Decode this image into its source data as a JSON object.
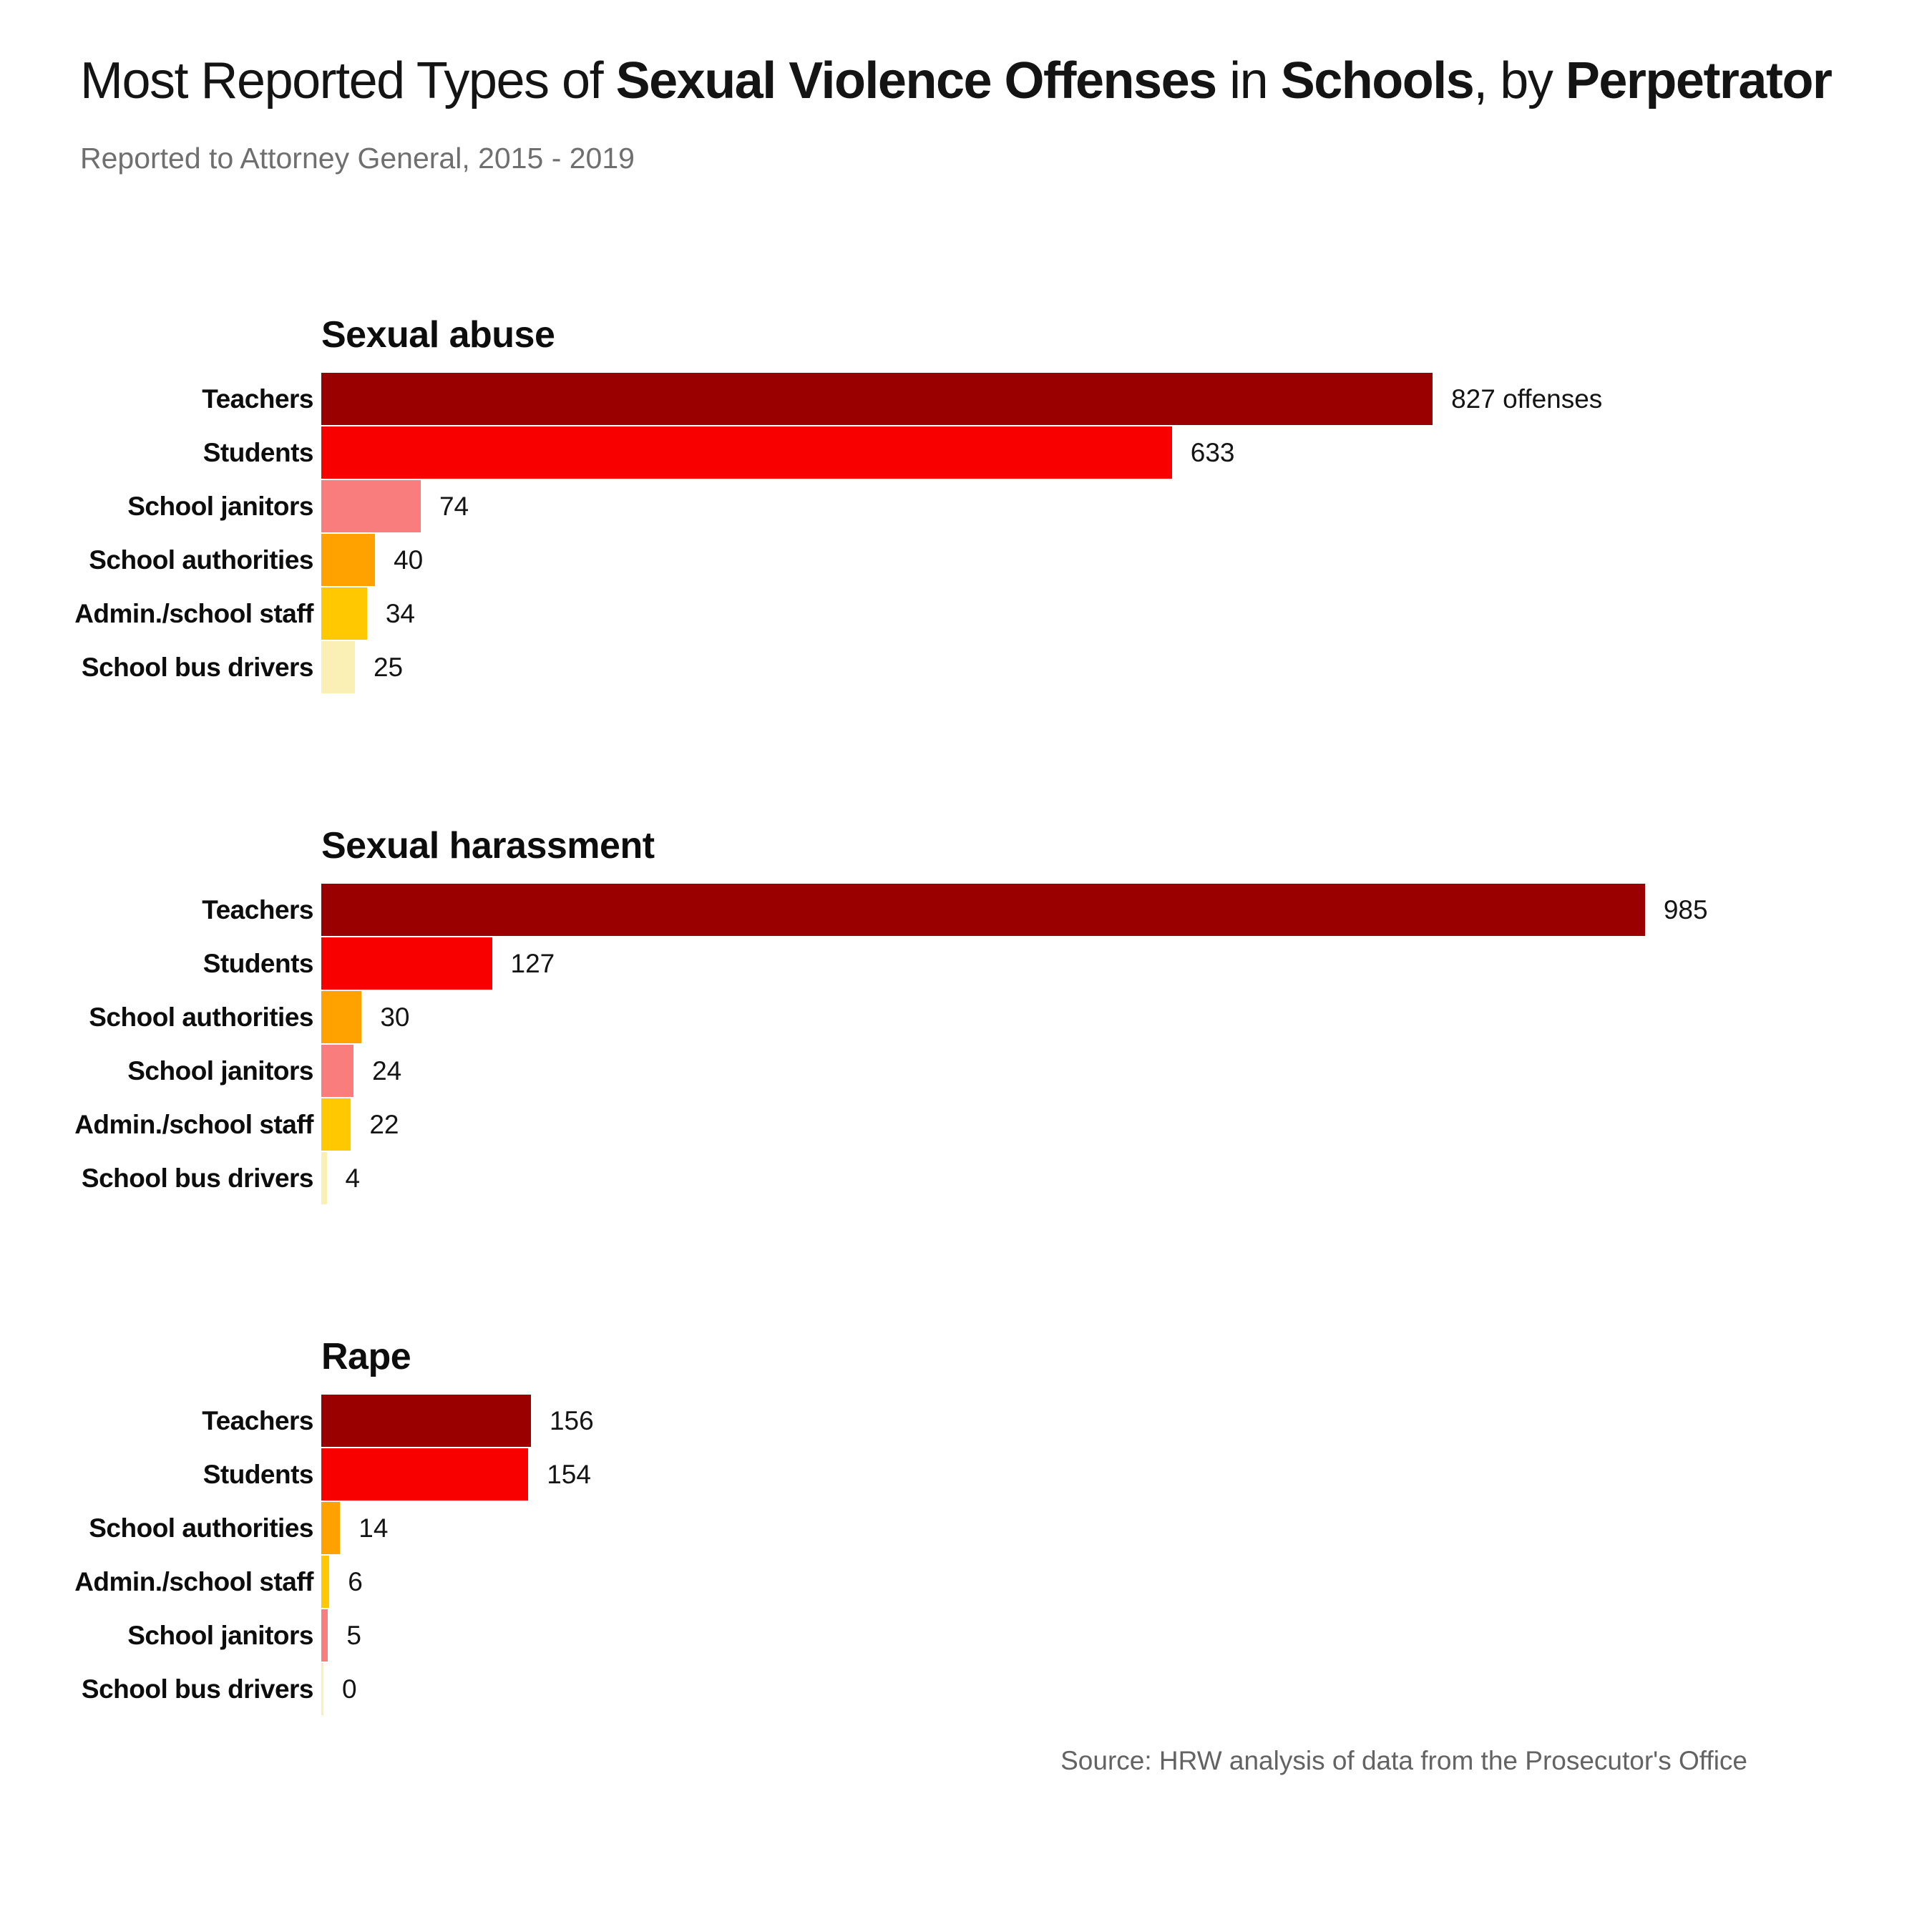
{
  "header": {
    "title_segments": [
      {
        "text": "Most Reported Types of ",
        "bold": false
      },
      {
        "text": "Sexual Violence Offenses",
        "bold": true
      },
      {
        "text": " in ",
        "bold": false
      },
      {
        "text": "Schools",
        "bold": true
      },
      {
        "text": ", by ",
        "bold": false
      },
      {
        "text": "Perpetrator",
        "bold": true
      }
    ],
    "subtitle": "Reported to Attorney General, 2015 - 2019"
  },
  "footer": {
    "source": "Source: HRW analysis of data from the Prosecutor's Office"
  },
  "theme": {
    "teachers_color": "#9a0000",
    "students_color": "#f90000",
    "janitors_color": "#f97d7d",
    "authorities_color": "#ffa200",
    "admin_staff_color": "#ffc800",
    "bus_drivers_color": "#faefb5",
    "title_color": "#141414",
    "subtitle_color": "#6f6f6f",
    "source_color": "#636363"
  },
  "chart_data": [
    {
      "type": "bar",
      "orientation": "horizontal",
      "title": "Sexual abuse",
      "xlim": [
        0,
        985
      ],
      "grid": false,
      "categories": [
        "Teachers",
        "Students",
        "School janitors",
        "School authorities",
        "Admin./school staff",
        "School bus drivers"
      ],
      "values": [
        827,
        633,
        74,
        40,
        34,
        25
      ],
      "rows": [
        {
          "category": "Teachers",
          "value": 827,
          "label": "827 offenses",
          "color": "#9a0000"
        },
        {
          "category": "Students",
          "value": 633,
          "label": "633",
          "color": "#f90000"
        },
        {
          "category": "School janitors",
          "value": 74,
          "label": "74",
          "color": "#f97d7d"
        },
        {
          "category": "School authorities",
          "value": 40,
          "label": "40",
          "color": "#ffa200"
        },
        {
          "category": "Admin./school staff",
          "value": 34,
          "label": "34",
          "color": "#ffc800"
        },
        {
          "category": "School bus drivers",
          "value": 25,
          "label": "25",
          "color": "#faefb5"
        }
      ]
    },
    {
      "type": "bar",
      "orientation": "horizontal",
      "title": "Sexual harassment",
      "xlim": [
        0,
        985
      ],
      "grid": false,
      "categories": [
        "Teachers",
        "Students",
        "School authorities",
        "School janitors",
        "Admin./school staff",
        "School bus drivers"
      ],
      "values": [
        985,
        127,
        30,
        24,
        22,
        4
      ],
      "rows": [
        {
          "category": "Teachers",
          "value": 985,
          "label": "985",
          "color": "#9a0000"
        },
        {
          "category": "Students",
          "value": 127,
          "label": "127",
          "color": "#f90000"
        },
        {
          "category": "School authorities",
          "value": 30,
          "label": "30",
          "color": "#ffa200"
        },
        {
          "category": "School janitors",
          "value": 24,
          "label": "24",
          "color": "#f97d7d"
        },
        {
          "category": "Admin./school staff",
          "value": 22,
          "label": "22",
          "color": "#ffc800"
        },
        {
          "category": "School bus drivers",
          "value": 4,
          "label": "4",
          "color": "#faefb5"
        }
      ]
    },
    {
      "type": "bar",
      "orientation": "horizontal",
      "title": "Rape",
      "xlim": [
        0,
        985
      ],
      "grid": false,
      "categories": [
        "Teachers",
        "Students",
        "School authorities",
        "Admin./school staff",
        "School janitors",
        "School bus drivers"
      ],
      "values": [
        156,
        154,
        14,
        6,
        5,
        0
      ],
      "rows": [
        {
          "category": "Teachers",
          "value": 156,
          "label": "156",
          "color": "#9a0000"
        },
        {
          "category": "Students",
          "value": 154,
          "label": "154",
          "color": "#f90000"
        },
        {
          "category": "School authorities",
          "value": 14,
          "label": "14",
          "color": "#ffa200"
        },
        {
          "category": "Admin./school staff",
          "value": 6,
          "label": "6",
          "color": "#ffc800"
        },
        {
          "category": "School janitors",
          "value": 5,
          "label": "5",
          "color": "#f97d7d"
        },
        {
          "category": "School bus drivers",
          "value": 0,
          "label": "0",
          "color": "#faefb5"
        }
      ]
    }
  ]
}
